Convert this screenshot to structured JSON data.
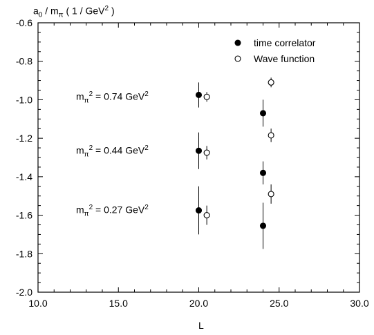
{
  "chart_data": {
    "type": "scatter",
    "ylabel": {
      "main": "a",
      "sub": "0",
      "mid": " / m",
      "sub2": "π",
      "unit": " ( 1 / GeV",
      "unit_sup": "2",
      "tail": " )"
    },
    "xlabel": "L",
    "xlim": [
      10.0,
      30.0
    ],
    "ylim": [
      -2.0,
      -0.6
    ],
    "x_ticks": [
      10.0,
      15.0,
      20.0,
      25.0,
      30.0
    ],
    "x_tick_labels": [
      "10.0",
      "15.0",
      "20.0",
      "25.0",
      "30.0"
    ],
    "y_ticks": [
      -2.0,
      -1.8,
      -1.6,
      -1.4,
      -1.2,
      -1.0,
      -0.8,
      -0.6
    ],
    "y_tick_labels": [
      "-2.0",
      "-1.8",
      "-1.6",
      "-1.4",
      "-1.2",
      "-1.0",
      "-0.8",
      "-0.6"
    ],
    "grid": false,
    "legend_position": "top-right",
    "series": [
      {
        "name": "time correlator",
        "marker": "filled-circle",
        "points": [
          {
            "x": 20.0,
            "y": -0.975,
            "err": 0.065
          },
          {
            "x": 20.0,
            "y": -1.265,
            "err": 0.095
          },
          {
            "x": 20.0,
            "y": -1.575,
            "err": 0.125
          },
          {
            "x": 24.0,
            "y": -1.07,
            "err": 0.07
          },
          {
            "x": 24.0,
            "y": -1.38,
            "err": 0.06
          },
          {
            "x": 24.0,
            "y": -1.655,
            "err": 0.12
          }
        ]
      },
      {
        "name": "Wave function",
        "marker": "open-circle",
        "points": [
          {
            "x": 20.5,
            "y": -0.985,
            "err": 0.025
          },
          {
            "x": 20.5,
            "y": -1.275,
            "err": 0.035
          },
          {
            "x": 20.5,
            "y": -1.6,
            "err": 0.05
          },
          {
            "x": 24.5,
            "y": -0.91,
            "err": 0.025
          },
          {
            "x": 24.5,
            "y": -1.185,
            "err": 0.035
          },
          {
            "x": 24.5,
            "y": -1.49,
            "err": 0.05
          }
        ]
      }
    ],
    "annotations": [
      {
        "base": "m",
        "sub": "π",
        "sup": "2",
        "rest": " = 0.74 GeV",
        "rest_sup": "2"
      },
      {
        "base": "m",
        "sub": "π",
        "sup": "2",
        "rest": " = 0.44 GeV",
        "rest_sup": "2"
      },
      {
        "base": "m",
        "sub": "π",
        "sup": "2",
        "rest": " = 0.27 GeV",
        "rest_sup": "2"
      }
    ]
  }
}
